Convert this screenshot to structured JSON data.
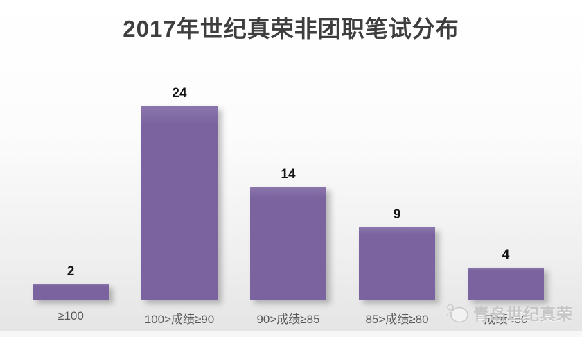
{
  "chart_data": {
    "type": "bar",
    "title": "2017年世纪真荣非团职笔试分布",
    "categories": [
      "≥100",
      "100>成绩≥90",
      "90>成绩≥85",
      "85>成绩≥80",
      "成绩<80"
    ],
    "values": [
      2,
      24,
      14,
      9,
      4
    ],
    "xlabel": "",
    "ylabel": "",
    "ylim": [
      0,
      26
    ],
    "grid": false,
    "legend": "none",
    "data_labels": true,
    "bar_color": "#7A639E",
    "bar_highlight": "#8B76AD",
    "value_label_color": "#141414",
    "category_label_color": "#595959",
    "title_color": "#3E3E3E"
  },
  "watermark": {
    "text": "青岛世纪真荣",
    "logo_icon": "circle-mascot-logo",
    "color": "#C6C6C6"
  }
}
